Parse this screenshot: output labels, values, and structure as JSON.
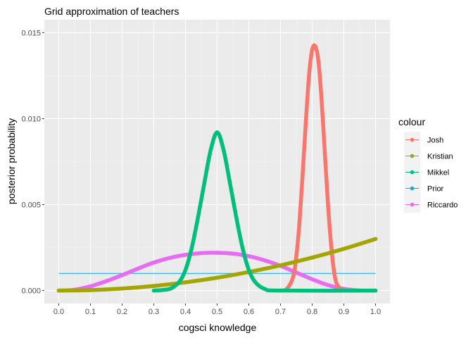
{
  "chart_data": {
    "type": "line",
    "title": "Grid approximation of teachers",
    "xlabel": "cogsci knowledge",
    "ylabel": "posterior probability",
    "xlim": [
      0,
      1
    ],
    "ylim": [
      0,
      0.015
    ],
    "x_ticks": [
      "0.0",
      "0.1",
      "0.2",
      "0.3",
      "0.4",
      "0.5",
      "0.6",
      "0.7",
      "0.8",
      "0.9",
      "1.0"
    ],
    "y_ticks": [
      "0.000",
      "0.005",
      "0.010",
      "0.015"
    ],
    "grid": true,
    "legend_title": "colour",
    "legend_position": "right",
    "series": [
      {
        "name": "Josh",
        "color": "#F8766D",
        "markers": true,
        "x": [
          0.7,
          0.72,
          0.74,
          0.75,
          0.76,
          0.77,
          0.78,
          0.79,
          0.8,
          0.81,
          0.82,
          0.83,
          0.84,
          0.85,
          0.86,
          0.87,
          0.88,
          0.9
        ],
        "y": [
          0.0,
          0.0001,
          0.0008,
          0.002,
          0.004,
          0.0068,
          0.0098,
          0.0125,
          0.014,
          0.0142,
          0.0133,
          0.011,
          0.008,
          0.005,
          0.0026,
          0.001,
          0.0003,
          0.0
        ]
      },
      {
        "name": "Kristian",
        "color": "#A3A500",
        "markers": true,
        "x": [
          0.0,
          0.1,
          0.2,
          0.3,
          0.4,
          0.5,
          0.6,
          0.7,
          0.8,
          0.9,
          1.0
        ],
        "y": [
          0.0,
          3e-05,
          0.00012,
          0.00027,
          0.00048,
          0.00075,
          0.00108,
          0.00147,
          0.00192,
          0.00243,
          0.003
        ]
      },
      {
        "name": "Mikkel",
        "color": "#00BF7D",
        "markers": true,
        "x": [
          0.3,
          0.35,
          0.38,
          0.4,
          0.42,
          0.44,
          0.46,
          0.48,
          0.5,
          0.52,
          0.54,
          0.56,
          0.58,
          0.6,
          0.62,
          0.65,
          0.7,
          1.0
        ],
        "y": [
          0.0,
          0.0001,
          0.0005,
          0.0012,
          0.0025,
          0.0043,
          0.0063,
          0.0082,
          0.0092,
          0.0082,
          0.0063,
          0.0043,
          0.0025,
          0.0012,
          0.0005,
          0.0001,
          0.0,
          0.0
        ]
      },
      {
        "name": "Prior",
        "color": "#00B0F6",
        "markers": false,
        "x": [
          0.0,
          1.0
        ],
        "y": [
          0.001,
          0.001
        ]
      },
      {
        "name": "Riccardo",
        "color": "#E76BF3",
        "markers": true,
        "x": [
          0.0,
          0.05,
          0.1,
          0.15,
          0.2,
          0.25,
          0.3,
          0.35,
          0.4,
          0.45,
          0.5,
          0.55,
          0.6,
          0.65,
          0.7,
          0.75,
          0.8,
          0.85,
          0.9,
          0.95,
          1.0
        ],
        "y": [
          0.0,
          5e-05,
          0.00025,
          0.00055,
          0.0009,
          0.00128,
          0.00163,
          0.0019,
          0.00208,
          0.00218,
          0.0022,
          0.00215,
          0.002,
          0.00176,
          0.00144,
          0.00105,
          0.00066,
          0.00032,
          0.0001,
          1e-05,
          0.0
        ]
      }
    ]
  }
}
